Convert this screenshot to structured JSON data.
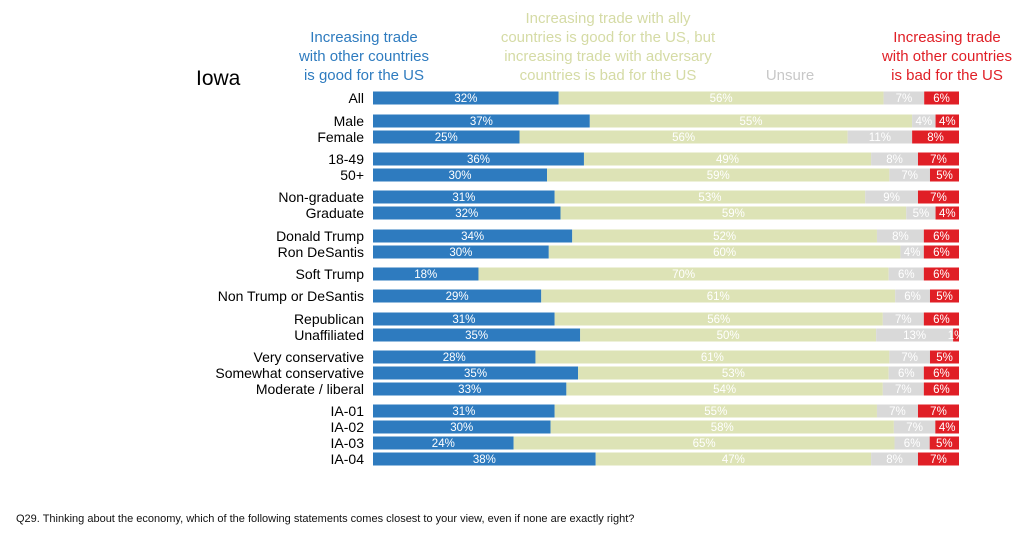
{
  "region_title": "Iowa",
  "footnote": "Q29. Thinking about the economy, which of the following statements comes closest to your view, even if none are exactly right?",
  "colors": {
    "good": "#2e7bbf",
    "ally": "#dde3b6",
    "unsure": "#d9d9d9",
    "bad": "#e01f26",
    "ally_text": "#d5dba5",
    "unsure_text": "#c8c8c8"
  },
  "chart_data": {
    "type": "bar",
    "orientation": "horizontal",
    "stacked": true,
    "xlim": [
      0,
      100
    ],
    "grid": false,
    "legend_placement": "top",
    "categories": [
      "All",
      "Male",
      "Female",
      "18-49",
      "50+",
      "Non-graduate",
      "Graduate",
      "Donald Trump",
      "Ron DeSantis",
      "Soft Trump",
      "Non Trump or DeSantis",
      "Republican",
      "Unaffiliated",
      "Very conservative",
      "Somewhat conservative",
      "Moderate / liberal",
      "IA-01",
      "IA-02",
      "IA-03",
      "IA-04"
    ],
    "series": [
      {
        "key": "good",
        "name_lines": [
          "Increasing trade",
          "with other countries",
          "is good for the US"
        ],
        "values": [
          32,
          37,
          25,
          36,
          30,
          31,
          32,
          34,
          30,
          18,
          29,
          31,
          35,
          28,
          35,
          33,
          31,
          30,
          24,
          38
        ]
      },
      {
        "key": "ally",
        "name_lines": [
          "Increasing trade with ally",
          "countries is good for the US, but",
          "increasing trade with adversary",
          "countries is bad for the US"
        ],
        "values": [
          56,
          55,
          56,
          49,
          59,
          53,
          59,
          52,
          60,
          70,
          61,
          56,
          50,
          61,
          53,
          54,
          55,
          58,
          65,
          47
        ]
      },
      {
        "key": "unsure",
        "name_lines": [
          "Unsure"
        ],
        "values": [
          7,
          4,
          11,
          8,
          7,
          9,
          5,
          8,
          4,
          6,
          6,
          7,
          13,
          7,
          6,
          7,
          7,
          7,
          6,
          8
        ]
      },
      {
        "key": "bad",
        "name_lines": [
          "Increasing trade",
          "with other countries",
          "is bad for the US"
        ],
        "values": [
          6,
          4,
          8,
          7,
          5,
          7,
          4,
          6,
          6,
          6,
          5,
          6,
          1,
          5,
          6,
          6,
          7,
          4,
          5,
          7
        ]
      }
    ]
  }
}
